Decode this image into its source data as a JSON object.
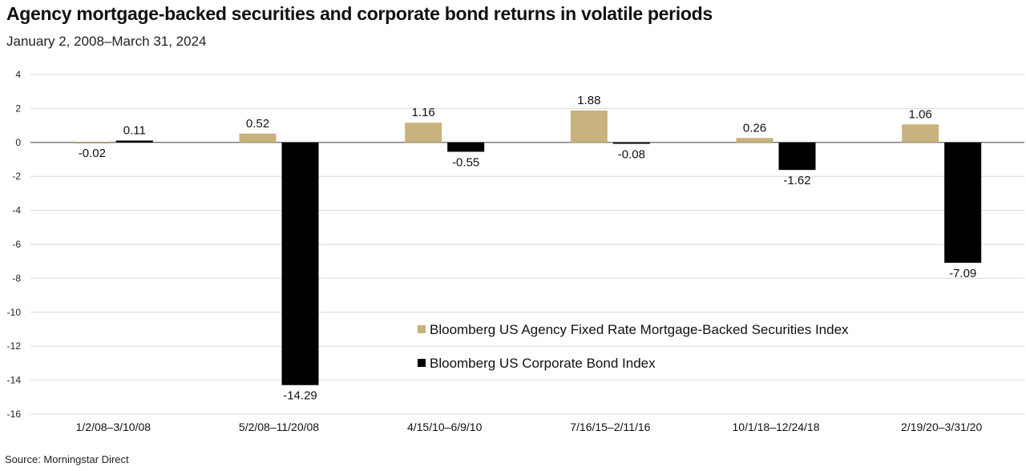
{
  "title": "Agency mortgage-backed securities and corporate bond returns in volatile periods",
  "subtitle": "January 2, 2008–March 31, 2024",
  "source": "Source: Morningstar Direct",
  "chart_data": {
    "type": "bar",
    "categories": [
      "1/2/08–3/10/08",
      "5/2/08–11/20/08",
      "4/15/10–6/9/10",
      "7/16/15–2/11/16",
      "10/1/18–12/24/18",
      "2/19/20–3/31/20"
    ],
    "series": [
      {
        "name": "Bloomberg US Agency Fixed Rate Mortgage-Backed Securities Index",
        "values": [
          -0.02,
          0.52,
          1.16,
          1.88,
          0.26,
          1.06
        ],
        "color": "#c8b27d"
      },
      {
        "name": "Bloomberg US Corporate Bond Index",
        "values": [
          0.11,
          -14.29,
          -0.55,
          -0.08,
          -1.62,
          -7.09
        ],
        "color": "#000000"
      }
    ],
    "data_labels": [
      [
        "-0.02",
        "0.52",
        "1.16",
        "1.88",
        "0.26",
        "1.06"
      ],
      [
        "0.11",
        "-14.29",
        "-0.55",
        "-0.08",
        "-1.62",
        "-7.09"
      ]
    ],
    "ylim": [
      -16,
      4
    ],
    "yticks": [
      4,
      2,
      0,
      -2,
      -4,
      -6,
      -8,
      -10,
      -12,
      -14,
      -16
    ],
    "grid": true,
    "legend_position": "lower-right"
  }
}
